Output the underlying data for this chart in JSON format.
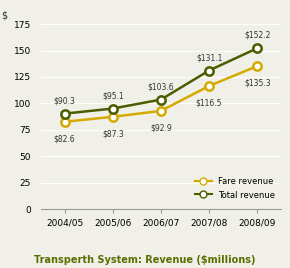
{
  "years": [
    "2004/05",
    "2005/06",
    "2006/07",
    "2007/08",
    "2008/09"
  ],
  "fare_revenue": [
    82.6,
    87.3,
    92.9,
    116.5,
    135.3
  ],
  "total_revenue": [
    90.3,
    95.1,
    103.6,
    131.1,
    152.2
  ],
  "fare_color": "#d4aa00",
  "total_color": "#4a5e00",
  "title": "Transperth System: Revenue ($millions)",
  "title_color": "#5a6e00",
  "ylabel": "$",
  "ylim": [
    0,
    175
  ],
  "yticks": [
    0,
    25,
    50,
    75,
    100,
    125,
    150,
    175
  ],
  "fare_labels": [
    "$82.6",
    "$87.3",
    "$92.9",
    "$116.5",
    "$135.3"
  ],
  "total_labels": [
    "$90.3",
    "$95.1",
    "$103.6",
    "$131.1",
    "$152.2"
  ],
  "legend_fare": "Fare revenue",
  "legend_total": "Total revenue",
  "background_color": "#f0f0e8"
}
